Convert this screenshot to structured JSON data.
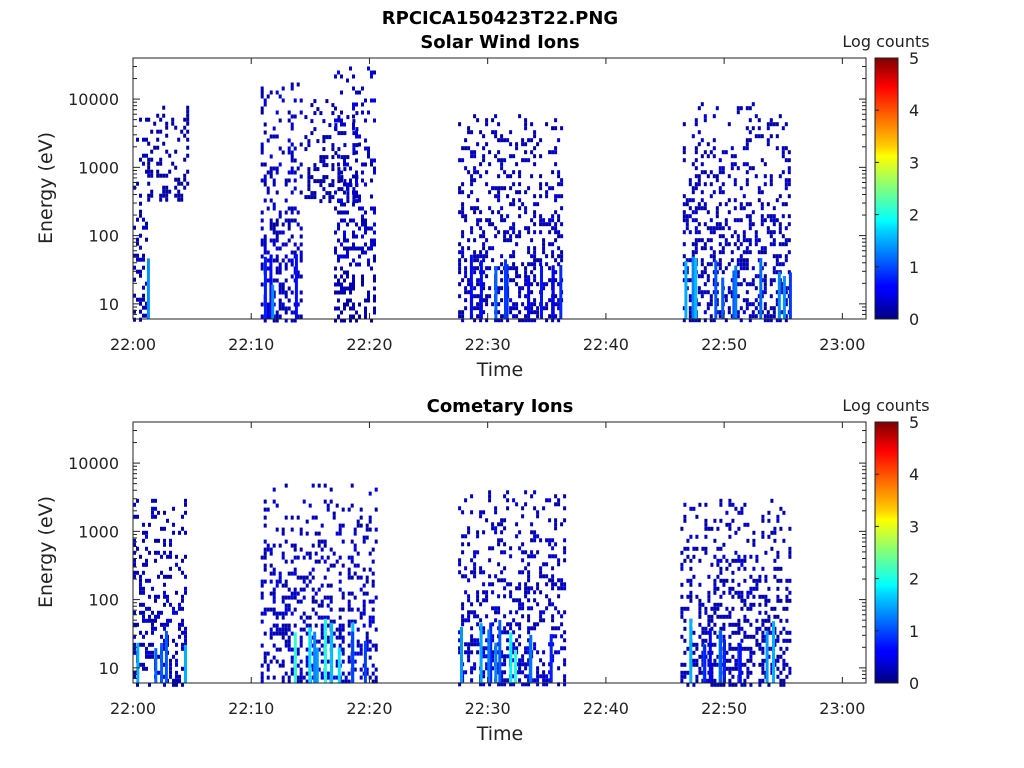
{
  "figure": {
    "filename": "RPCICA150423T22.PNG"
  },
  "chart_data": [
    {
      "type": "heatmap",
      "title": "Solar Wind Ions",
      "xlabel": "Time",
      "ylabel": "Energy (eV)",
      "x_ticks": [
        "22:00",
        "22:10",
        "22:20",
        "22:30",
        "22:40",
        "22:50",
        "23:00"
      ],
      "x_range_minutes": [
        0,
        62
      ],
      "y_scale": "log",
      "y_ticks": [
        "10",
        "100",
        "1000",
        "10000"
      ],
      "y_range": [
        6,
        40000
      ],
      "colorbar": {
        "label": "Log counts",
        "range": [
          0,
          5
        ],
        "ticks": [
          "0",
          "1",
          "2",
          "3",
          "4",
          "5"
        ]
      },
      "bursts": [
        {
          "t_start": 0.0,
          "t_end": 1.2,
          "e_min": 6,
          "e_max": 8000,
          "level": 0.3,
          "low_hot": 1.3
        },
        {
          "t_start": 1.2,
          "t_end": 4.5,
          "e_min": 350,
          "e_max": 8000,
          "level": 0.2,
          "low_hot": 0.0
        },
        {
          "t_start": 10.8,
          "t_end": 14.2,
          "e_min": 6,
          "e_max": 20000,
          "level": 0.35,
          "low_hot": 1.4
        },
        {
          "t_start": 14.5,
          "t_end": 19.0,
          "e_min": 300,
          "e_max": 10000,
          "level": 0.25,
          "low_hot": 0.0
        },
        {
          "t_start": 17.0,
          "t_end": 20.5,
          "e_min": 6,
          "e_max": 30000,
          "level": 0.4,
          "low_hot": 1.0
        },
        {
          "t_start": 27.5,
          "t_end": 36.2,
          "e_min": 6,
          "e_max": 6000,
          "level": 0.3,
          "low_hot": 1.3
        },
        {
          "t_start": 46.5,
          "t_end": 55.5,
          "e_min": 6,
          "e_max": 9000,
          "level": 0.3,
          "low_hot": 1.3
        }
      ]
    },
    {
      "type": "heatmap",
      "title": "Cometary Ions",
      "xlabel": "Time",
      "ylabel": "Energy (eV)",
      "x_ticks": [
        "22:00",
        "22:10",
        "22:20",
        "22:30",
        "22:40",
        "22:50",
        "23:00"
      ],
      "x_range_minutes": [
        0,
        62
      ],
      "y_scale": "log",
      "y_ticks": [
        "10",
        "100",
        "1000",
        "10000"
      ],
      "y_range": [
        6,
        40000
      ],
      "colorbar": {
        "label": "Log counts",
        "range": [
          0,
          5
        ],
        "ticks": [
          "0",
          "1",
          "2",
          "3",
          "4",
          "5"
        ]
      },
      "bursts": [
        {
          "t_start": 0.0,
          "t_end": 4.5,
          "e_min": 6,
          "e_max": 3000,
          "level": 0.35,
          "low_hot": 1.6
        },
        {
          "t_start": 10.8,
          "t_end": 20.5,
          "e_min": 6,
          "e_max": 5000,
          "level": 0.35,
          "low_hot": 1.8
        },
        {
          "t_start": 27.5,
          "t_end": 36.5,
          "e_min": 6,
          "e_max": 4000,
          "level": 0.35,
          "low_hot": 1.9
        },
        {
          "t_start": 46.3,
          "t_end": 55.5,
          "e_min": 6,
          "e_max": 3000,
          "level": 0.3,
          "low_hot": 1.3
        }
      ]
    }
  ]
}
